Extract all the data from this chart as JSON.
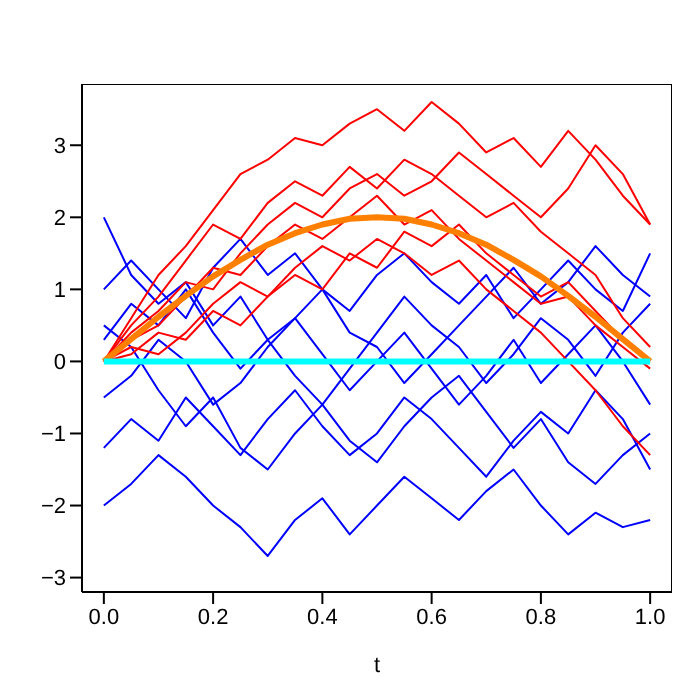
{
  "chart_data": {
    "type": "line",
    "xlabel": "t",
    "x": [
      0,
      0.05,
      0.1,
      0.15,
      0.2,
      0.25,
      0.3,
      0.35,
      0.4,
      0.45,
      0.5,
      0.55,
      0.6,
      0.65,
      0.7,
      0.75,
      0.8,
      0.85,
      0.9,
      0.95,
      1
    ],
    "xlim": [
      -0.04,
      1.04
    ],
    "xticks": [
      {
        "value": 0,
        "label": "0.0"
      },
      {
        "value": 0.2,
        "label": "0.2"
      },
      {
        "value": 0.4,
        "label": "0.4"
      },
      {
        "value": 0.6,
        "label": "0.6"
      },
      {
        "value": 0.8,
        "label": "0.8"
      },
      {
        "value": 1,
        "label": "1.0"
      }
    ],
    "ylim": [
      -3.2,
      3.85
    ],
    "yticks": [
      {
        "value": -3,
        "label": "−3"
      },
      {
        "value": -2,
        "label": "−2"
      },
      {
        "value": -1,
        "label": "−1"
      },
      0,
      1,
      2,
      3
    ],
    "series": [
      {
        "color": "#0000ff",
        "values": [
          2.0,
          1.2,
          0.8,
          1.1,
          0.5,
          0.9,
          0.3,
          0.6,
          1.0,
          0.4,
          0.2,
          -0.3,
          0.1,
          0.5,
          0.9,
          1.3,
          0.8,
          1.1,
          1.6,
          1.2,
          0.9
        ]
      },
      {
        "color": "#0000ff",
        "values": [
          -2.0,
          -1.7,
          -1.3,
          -1.6,
          -2.0,
          -2.3,
          -2.7,
          -2.2,
          -1.9,
          -2.4,
          -2.0,
          -1.6,
          -1.9,
          -2.2,
          -1.8,
          -1.5,
          -2.0,
          -2.4,
          -2.1,
          -2.3,
          -2.2
        ]
      },
      {
        "color": "#0000ff",
        "values": [
          0.5,
          0.2,
          -0.4,
          -0.9,
          -0.5,
          -1.2,
          -1.5,
          -1.0,
          -0.6,
          -1.1,
          -1.4,
          -0.9,
          -0.5,
          -0.2,
          -0.7,
          -1.2,
          -0.8,
          -1.4,
          -1.7,
          -1.3,
          -1.0
        ]
      },
      {
        "color": "#0000ff",
        "values": [
          1.0,
          1.4,
          1.0,
          0.6,
          1.3,
          1.7,
          1.2,
          1.5,
          1.0,
          0.7,
          1.2,
          1.5,
          1.1,
          0.8,
          1.2,
          0.6,
          1.0,
          1.4,
          1.0,
          0.7,
          1.5
        ]
      },
      {
        "color": "#0000ff",
        "values": [
          -0.5,
          -0.2,
          0.3,
          0.0,
          -0.6,
          -0.3,
          0.2,
          0.6,
          0.1,
          -0.4,
          0.0,
          0.4,
          -0.1,
          -0.6,
          -0.2,
          0.3,
          -0.3,
          0.1,
          0.5,
          0.0,
          -0.6
        ]
      },
      {
        "color": "#0000ff",
        "values": [
          -1.2,
          -0.8,
          -1.1,
          -0.5,
          -0.9,
          -1.3,
          -0.8,
          -0.4,
          -0.9,
          -1.3,
          -1.0,
          -0.5,
          -0.8,
          -1.2,
          -1.6,
          -1.1,
          -0.7,
          -1.0,
          -0.4,
          -0.8,
          -1.5
        ]
      },
      {
        "color": "#0000ff",
        "values": [
          0.3,
          0.8,
          0.5,
          1.0,
          0.4,
          -0.1,
          0.3,
          -0.2,
          -0.6,
          -0.1,
          0.4,
          0.9,
          0.5,
          0.2,
          -0.3,
          0.1,
          0.6,
          0.3,
          -0.2,
          0.4,
          0.8
        ]
      },
      {
        "color": "#ff0000",
        "values": [
          0.0,
          0.6,
          1.2,
          1.6,
          2.1,
          2.6,
          2.8,
          3.1,
          3.0,
          3.3,
          3.5,
          3.2,
          3.6,
          3.3,
          2.9,
          3.1,
          2.7,
          3.2,
          2.8,
          2.3,
          1.9
        ]
      },
      {
        "color": "#ff0000",
        "values": [
          0.0,
          0.3,
          0.5,
          0.9,
          1.3,
          1.2,
          1.6,
          1.9,
          1.7,
          2.0,
          2.3,
          1.9,
          2.1,
          1.7,
          1.4,
          1.1,
          0.8,
          0.9,
          0.5,
          0.2,
          -0.1
        ]
      },
      {
        "color": "#ff0000",
        "values": [
          0.0,
          0.2,
          0.1,
          0.4,
          0.8,
          1.1,
          0.9,
          1.3,
          1.6,
          1.4,
          1.7,
          1.5,
          1.2,
          1.4,
          1.0,
          0.7,
          0.4,
          0.0,
          -0.4,
          -0.9,
          -1.3
        ]
      },
      {
        "color": "#ff0000",
        "values": [
          0.0,
          0.5,
          0.9,
          1.4,
          1.9,
          1.7,
          2.2,
          2.5,
          2.3,
          2.7,
          2.4,
          2.8,
          2.6,
          2.3,
          2.0,
          2.2,
          1.8,
          1.5,
          1.2,
          0.6,
          0.2
        ]
      },
      {
        "color": "#ff0000",
        "values": [
          0.0,
          0.1,
          0.4,
          0.3,
          0.7,
          0.5,
          0.9,
          1.2,
          1.0,
          1.5,
          1.3,
          1.8,
          1.6,
          1.9,
          1.5,
          1.2,
          0.9,
          1.1,
          0.7,
          0.3,
          0.0
        ]
      },
      {
        "color": "#ff0000",
        "values": [
          0.0,
          0.4,
          0.7,
          1.1,
          1.0,
          1.5,
          1.9,
          2.2,
          2.0,
          2.4,
          2.6,
          2.3,
          2.5,
          2.9,
          2.6,
          2.3,
          2.0,
          2.4,
          3.0,
          2.6,
          1.9
        ]
      },
      {
        "color": "#ff8000",
        "values": [
          0,
          0.31,
          0.62,
          0.91,
          1.18,
          1.41,
          1.62,
          1.78,
          1.9,
          1.98,
          2,
          1.98,
          1.9,
          1.78,
          1.62,
          1.41,
          1.18,
          0.91,
          0.62,
          0.31,
          0
        ]
      },
      {
        "color": "#00ffff",
        "x": [
          0,
          1
        ],
        "values": [
          0,
          0
        ]
      }
    ]
  }
}
